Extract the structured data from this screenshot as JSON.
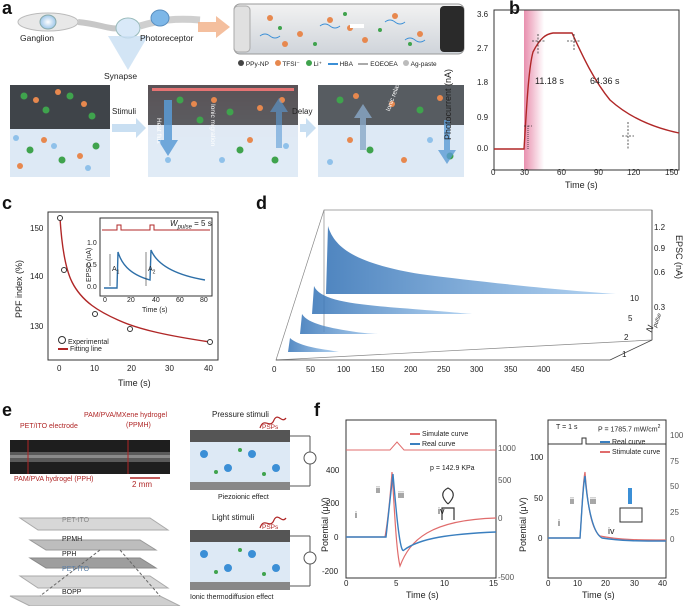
{
  "panel_labels": {
    "a": "a",
    "b": "b",
    "c": "c",
    "d": "d",
    "e": "e",
    "f": "f"
  },
  "panel_a": {
    "labels": {
      "ganglion": "Ganglion",
      "synapse": "Synapse",
      "photoreceptor": "Photoreceptor"
    },
    "legend": [
      "PPy-NP",
      "TFSI⁻",
      "Li⁺",
      "HBA",
      "EOEOEA",
      "Ag-paste"
    ],
    "steps": {
      "stimuli": "Stimuli",
      "delay": "Delay"
    },
    "annotations": {
      "heat_flux": "Heat flux",
      "ionic_migration": "Ionic migration",
      "ionic_relaxation": "Ionic relaxation"
    },
    "colors": {
      "ppy": "#e7884e",
      "tfsi": "#f2c9a8",
      "li": "#3fa34d",
      "hba": "#3b8fd6",
      "electrolyte": "#dde9f5",
      "electrode": "#555a60"
    }
  },
  "panel_b": {
    "ylabel": "Photocurrent (nA)",
    "xlabel": "Time (s)",
    "annotations": [
      "11.18 s",
      "64.36 s"
    ],
    "xticks": [
      "0",
      "30",
      "60",
      "90",
      "120",
      "150"
    ],
    "yticks": [
      "0.0",
      "0.9",
      "1.8",
      "2.7",
      "3.6"
    ]
  },
  "panel_c": {
    "ylabel": "PPF index (%)",
    "xlabel": "Time (s)",
    "xticks": [
      "0",
      "10",
      "20",
      "30",
      "40"
    ],
    "yticks": [
      "130",
      "140",
      "150"
    ],
    "legend": [
      "Experimental",
      "Fitting line"
    ],
    "inset": {
      "ylabel": "EPSC (nA)",
      "xlabel": "Time (s)",
      "xticks": [
        "0",
        "20",
        "40",
        "60",
        "80"
      ],
      "yticks": [
        "0.0",
        "0.5",
        "1.0"
      ],
      "wpulse_label": "W",
      "wpulse_sub": "pulse",
      "wpulse_value": "= 5 s",
      "a1": "A",
      "a1_sub": "1",
      "a2": "A",
      "a2_sub": "2"
    }
  },
  "panel_d": {
    "xticks": [
      "0",
      "50",
      "100",
      "150",
      "200",
      "250",
      "300",
      "350",
      "400",
      "450"
    ],
    "zticks": [
      "0.3",
      "0.6",
      "0.9",
      "1.2"
    ],
    "zlabel": "EPSC (nA)",
    "npulse_label": "N",
    "npulse_sub": "pulse",
    "npulse_ticks": [
      "1",
      "2",
      "5",
      "10"
    ]
  },
  "panel_e": {
    "labels": {
      "pet_ito_electrode": "PET/ITO electrode",
      "pam_mxene": "PAM/PVA/MXene hydrogel",
      "ppmh": "(PPMH)",
      "pam_hydrogel": "PAM/PVA hydrogel (PPH)",
      "scale": "2 mm",
      "layers": [
        "PET-ITO",
        "PPMH",
        "PPH",
        "PET-ITO",
        "BOPP"
      ],
      "pressure": "Pressure stimuli",
      "light": "Light stimuli",
      "psps": "PSPs",
      "piezo": "Piezoionic effect",
      "thermo": "Ionic thermodiffusion effect"
    }
  },
  "panel_f": {
    "left": {
      "ylabel": "Potential (μV)",
      "xlabel": "Time (s)",
      "xticks": [
        "0",
        "5",
        "10",
        "15"
      ],
      "yticks": [
        "-200",
        "0",
        "200",
        "400"
      ],
      "y2ticks": [
        "-500",
        "0",
        "500",
        "1000"
      ],
      "legend": [
        "Simulate curve",
        "Real curve"
      ],
      "pressure": "p = 142.9 KPa",
      "stages": [
        "i",
        "ii",
        "iii",
        "iv"
      ]
    },
    "right": {
      "ylabel": "Potential (μV)",
      "xlabel": "Time (s)",
      "xticks": [
        "0",
        "10",
        "20",
        "30",
        "40"
      ],
      "yticks": [
        "0",
        "50",
        "100"
      ],
      "y2ticks": [
        "0",
        "25",
        "50",
        "75",
        "100"
      ],
      "legend": [
        "Real curve",
        "Stimulate curve"
      ],
      "period": "T = 1 s",
      "power": "P = 1785.7 mW/cm",
      "power_sup": "2",
      "stages": [
        "i",
        "ii",
        "iii",
        "iv"
      ]
    },
    "colors": {
      "simulate": "#e06c6c",
      "real": "#3a7fbf"
    }
  }
}
